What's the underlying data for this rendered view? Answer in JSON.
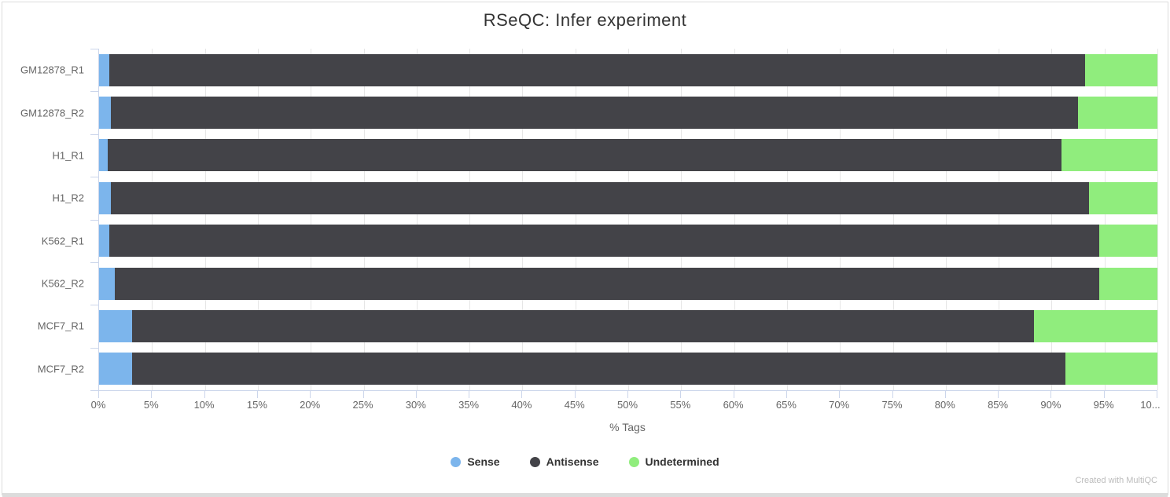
{
  "watermark": "Created with MultiQC",
  "colors": {
    "sense": "#7cb5ec",
    "antisense": "#434348",
    "undetermined": "#90ed7d",
    "axis_line": "#ccd6eb",
    "gridline": "#e6e6e6",
    "tick_label": "#666666",
    "title_text": "#333333",
    "legend_text": "#333333",
    "watermark_text": "#bcbcbc",
    "panel_border": "#dddddd"
  },
  "chart_data": {
    "type": "bar",
    "orientation": "horizontal",
    "stacked": true,
    "title": "RSeQC: Infer experiment",
    "xlabel": "% Tags",
    "ylabel": "",
    "xlim": [
      0,
      100
    ],
    "grid": true,
    "legend_position": "bottom",
    "categories": [
      "GM12878_R1",
      "GM12878_R2",
      "H1_R1",
      "H1_R2",
      "K562_R1",
      "K562_R2",
      "MCF7_R1",
      "MCF7_R2"
    ],
    "series": [
      {
        "name": "Sense",
        "color": "#7cb5ec",
        "values": [
          1.0,
          1.1,
          0.8,
          1.1,
          1.0,
          1.5,
          3.1,
          3.1
        ]
      },
      {
        "name": "Antisense",
        "color": "#434348",
        "values": [
          92.2,
          91.4,
          90.1,
          92.4,
          93.5,
          93.0,
          85.2,
          88.2
        ]
      },
      {
        "name": "Undetermined",
        "color": "#90ed7d",
        "values": [
          6.8,
          7.5,
          9.1,
          6.5,
          5.5,
          5.5,
          11.7,
          8.7
        ]
      }
    ],
    "xticks": {
      "values": [
        0,
        5,
        10,
        15,
        20,
        25,
        30,
        35,
        40,
        45,
        50,
        55,
        60,
        65,
        70,
        75,
        80,
        85,
        90,
        95,
        100
      ],
      "labels": [
        "0%",
        "5%",
        "10%",
        "15%",
        "20%",
        "25%",
        "30%",
        "35%",
        "40%",
        "45%",
        "50%",
        "55%",
        "60%",
        "65%",
        "70%",
        "75%",
        "80%",
        "85%",
        "90%",
        "95%",
        "10..."
      ]
    }
  }
}
